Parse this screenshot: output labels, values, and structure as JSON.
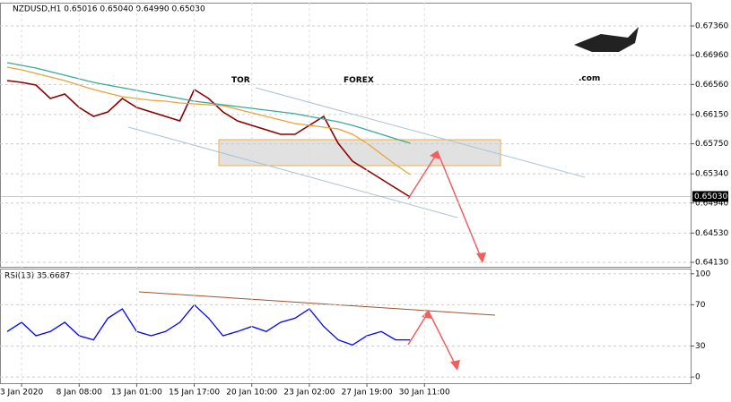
{
  "watermark": {
    "part1": "TOR",
    "part2": "FOREX",
    "part3": ".com"
  },
  "chart_data": [
    {
      "type": "line",
      "title": "NZDUSD,H1  0.65016 0.65040 0.64990 0.65030",
      "ylim": [
        0.64069,
        0.67678
      ],
      "yticks": [
        {
          "value": 0.6736,
          "label": "0.67360"
        },
        {
          "value": 0.6696,
          "label": "0.66960"
        },
        {
          "value": 0.6656,
          "label": "0.66560"
        },
        {
          "value": 0.6615,
          "label": "0.66150"
        },
        {
          "value": 0.6575,
          "label": "0.65750"
        },
        {
          "value": 0.6534,
          "label": "0.65340"
        },
        {
          "value": 0.6494,
          "label": "0.64940"
        },
        {
          "value": 0.6453,
          "label": "0.64530"
        },
        {
          "value": 0.6413,
          "label": "0.64130"
        }
      ],
      "current_price": {
        "value": 0.6503,
        "label": "0.65030"
      },
      "grid": true,
      "series": [
        {
          "color": "#8b0000",
          "values": [
            0.66614,
            0.66589,
            0.66552,
            0.66369,
            0.6643,
            0.66247,
            0.66124,
            0.66185,
            0.66369,
            0.66247,
            0.66185,
            0.66124,
            0.66063,
            0.66491,
            0.66369,
            0.66185,
            0.66063,
            0.66002,
            0.65941,
            0.6588,
            0.6588,
            0.66002,
            0.66124,
            0.65757,
            0.65513,
            0.6539,
            0.65268,
            0.65145,
            0.65023,
            null,
            null,
            null,
            null,
            null,
            null,
            null,
            null,
            null,
            null,
            null,
            null,
            null,
            null,
            null,
            null,
            null,
            null,
            null
          ]
        },
        {
          "color": "#e8a33c",
          "values": [
            0.66797,
            0.6676,
            0.66712,
            0.66663,
            0.66614,
            0.66552,
            0.66491,
            0.66442,
            0.66393,
            0.66369,
            0.66344,
            0.66332,
            0.66308,
            0.66296,
            0.66283,
            0.66271,
            0.66222,
            0.66173,
            0.66124,
            0.66075,
            0.66026,
            0.66002,
            0.65977,
            0.65953,
            0.6588,
            0.65757,
            0.6561,
            0.65464,
            0.65329,
            null,
            null,
            null,
            null,
            null,
            null,
            null,
            null,
            null,
            null,
            null,
            null,
            null,
            null,
            null,
            null,
            null,
            null,
            null
          ]
        },
        {
          "color": "#3aa89a",
          "values": [
            0.66858,
            0.66822,
            0.66785,
            0.66736,
            0.66687,
            0.66638,
            0.66589,
            0.66552,
            0.66516,
            0.66479,
            0.66442,
            0.66406,
            0.66369,
            0.66332,
            0.66308,
            0.66283,
            0.66259,
            0.66234,
            0.6621,
            0.66185,
            0.66161,
            0.66124,
            0.66088,
            0.66051,
            0.66002,
            0.65941,
            0.6588,
            0.65818,
            0.65757,
            null,
            null,
            null,
            null,
            null,
            null,
            null,
            null,
            null,
            null,
            null,
            null,
            null,
            null,
            null,
            null,
            null,
            null,
            null
          ]
        }
      ]
    },
    {
      "type": "line",
      "title": "RSI(13) 35.6687",
      "ylim": [
        -6,
        105
      ],
      "yticks": [
        0,
        30,
        70,
        100
      ],
      "grid": true,
      "categories": [
        null,
        "3 Jan 2020",
        null,
        null,
        null,
        "8 Jan 08:00",
        null,
        null,
        null,
        "13 Jan 01:00",
        null,
        null,
        null,
        "15 Jan 17:00",
        null,
        null,
        null,
        "20 Jan 10:00",
        null,
        null,
        null,
        "23 Jan 02:00",
        null,
        null,
        null,
        "27 Jan 19:00",
        null,
        null,
        null,
        "30 Jan 11:00",
        null,
        null,
        null,
        null,
        null,
        null,
        null,
        null,
        null,
        null,
        null,
        null,
        null,
        null,
        null,
        null,
        null,
        null
      ],
      "series": [
        {
          "color": "#0000ff",
          "values": [
            44,
            53,
            40,
            44,
            53,
            40,
            36,
            57,
            66,
            44,
            40,
            44,
            53,
            70,
            57,
            40,
            44,
            49,
            44,
            53,
            57,
            66,
            49,
            36,
            31,
            40,
            44,
            36,
            36,
            null,
            null,
            null,
            null,
            null,
            null,
            null,
            null,
            null,
            null,
            null,
            null,
            null,
            null,
            null,
            null,
            null,
            null,
            null
          ]
        }
      ]
    }
  ]
}
